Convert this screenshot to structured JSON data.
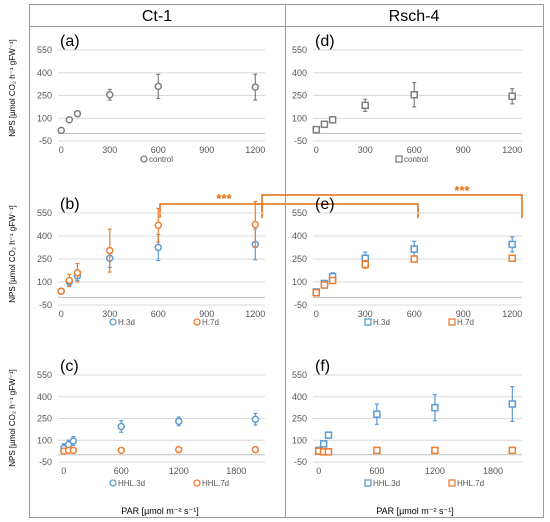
{
  "headers": {
    "left": "Ct-1",
    "right": "Rsch-4"
  },
  "y_axis_label": "NPS [µmol CO₂ h⁻¹ gFW⁻¹]",
  "x_axis_label": "PAR [µmol m⁻² s⁻¹]",
  "significance": "***",
  "colors": {
    "control": "#7f7f7f",
    "blue": "#5b9bd5",
    "orange": "#ed7d31",
    "grid": "#d9d9d9",
    "sig": "#e46c0a"
  },
  "chart_data": [
    {
      "type": "scatter",
      "panel": "(a)",
      "xlabel": "",
      "ylabel": "NPS [µmol CO₂ h⁻¹ gFW⁻¹]",
      "xlim": [
        -20,
        1260
      ],
      "ylim": [
        -50,
        550
      ],
      "xticks": [
        0,
        300,
        600,
        900,
        1200
      ],
      "yticks": [
        -50,
        100,
        250,
        400,
        550
      ],
      "series": [
        {
          "name": "control",
          "marker": "circle",
          "color": "#7f7f7f",
          "x": [
            0,
            50,
            100,
            300,
            600,
            1200
          ],
          "y": [
            20,
            90,
            130,
            255,
            310,
            305
          ],
          "err": [
            15,
            15,
            15,
            35,
            80,
            85
          ]
        }
      ]
    },
    {
      "type": "scatter",
      "panel": "(d)",
      "xlabel": "",
      "ylabel": "",
      "xlim": [
        -20,
        1260
      ],
      "ylim": [
        -50,
        550
      ],
      "xticks": [
        0,
        300,
        600,
        900,
        1200
      ],
      "yticks": [
        -50,
        100,
        250,
        400,
        550
      ],
      "series": [
        {
          "name": "control",
          "marker": "square",
          "color": "#7f7f7f",
          "x": [
            0,
            50,
            100,
            300,
            600,
            1200
          ],
          "y": [
            25,
            60,
            90,
            185,
            255,
            245
          ],
          "err": [
            20,
            20,
            20,
            40,
            80,
            50
          ]
        }
      ]
    },
    {
      "type": "scatter",
      "panel": "(b)",
      "xlabel": "",
      "ylabel": "NPS [µmol CO₂ h⁻¹ gFW⁻¹]",
      "xlim": [
        -20,
        1260
      ],
      "ylim": [
        -50,
        550
      ],
      "xticks": [
        0,
        300,
        600,
        900,
        1200
      ],
      "yticks": [
        -50,
        100,
        250,
        400,
        550
      ],
      "series": [
        {
          "name": "H.3d",
          "marker": "circle",
          "color": "#5b9bd5",
          "x": [
            0,
            50,
            100,
            300,
            600,
            1200
          ],
          "y": [
            40,
            100,
            140,
            255,
            325,
            345
          ],
          "err": [
            15,
            25,
            30,
            60,
            85,
            100
          ]
        },
        {
          "name": "H.7d",
          "marker": "circle",
          "color": "#ed7d31",
          "x": [
            0,
            50,
            100,
            300,
            600,
            1200
          ],
          "y": [
            40,
            110,
            160,
            305,
            470,
            475
          ],
          "err": [
            15,
            40,
            60,
            140,
            110,
            150
          ]
        }
      ]
    },
    {
      "type": "scatter",
      "panel": "(e)",
      "xlabel": "",
      "ylabel": "",
      "xlim": [
        -20,
        1260
      ],
      "ylim": [
        -50,
        550
      ],
      "xticks": [
        0,
        300,
        600,
        900,
        1200
      ],
      "yticks": [
        -50,
        100,
        250,
        400,
        550
      ],
      "series": [
        {
          "name": "H.3d",
          "marker": "square",
          "color": "#5b9bd5",
          "x": [
            0,
            50,
            100,
            300,
            600,
            1200
          ],
          "y": [
            35,
            90,
            135,
            255,
            315,
            345
          ],
          "err": [
            15,
            20,
            25,
            40,
            50,
            50
          ]
        },
        {
          "name": "H.7d",
          "marker": "square",
          "color": "#ed7d31",
          "x": [
            0,
            50,
            100,
            300,
            600,
            1200
          ],
          "y": [
            30,
            80,
            110,
            215,
            250,
            255
          ],
          "err": [
            10,
            15,
            15,
            25,
            20,
            20
          ]
        }
      ]
    },
    {
      "type": "scatter",
      "panel": "(c)",
      "xlabel": "PAR [µmol m⁻² s⁻¹]",
      "ylabel": "NPS [µmol CO₂ h⁻¹ gFW⁻¹]",
      "xlim": [
        -60,
        2100
      ],
      "ylim": [
        -50,
        550
      ],
      "xticks": [
        0,
        600,
        1200,
        1800
      ],
      "yticks": [
        -50,
        100,
        250,
        400,
        550
      ],
      "series": [
        {
          "name": "HHL.3d",
          "marker": "circle",
          "color": "#5b9bd5",
          "x": [
            0,
            50,
            100,
            600,
            1200,
            2000
          ],
          "y": [
            45,
            70,
            95,
            195,
            230,
            245
          ],
          "err": [
            30,
            30,
            30,
            40,
            30,
            40
          ]
        },
        {
          "name": "HHL.7d",
          "marker": "circle",
          "color": "#ed7d31",
          "x": [
            0,
            50,
            100,
            600,
            1200,
            2000
          ],
          "y": [
            25,
            30,
            30,
            30,
            35,
            35
          ],
          "err": [
            5,
            5,
            5,
            5,
            5,
            5
          ]
        }
      ]
    },
    {
      "type": "scatter",
      "panel": "(f)",
      "xlabel": "PAR [µmol m⁻² s⁻¹]",
      "ylabel": "",
      "xlim": [
        -60,
        2100
      ],
      "ylim": [
        -50,
        550
      ],
      "xticks": [
        0,
        600,
        1200,
        1800
      ],
      "yticks": [
        -50,
        100,
        250,
        400,
        550
      ],
      "series": [
        {
          "name": "HHL.3d",
          "marker": "square",
          "color": "#5b9bd5",
          "x": [
            0,
            50,
            100,
            600,
            1200,
            2000
          ],
          "y": [
            30,
            75,
            135,
            280,
            325,
            350
          ],
          "err": [
            15,
            15,
            20,
            70,
            90,
            120
          ]
        },
        {
          "name": "HHL.7d",
          "marker": "square",
          "color": "#ed7d31",
          "x": [
            0,
            50,
            100,
            600,
            1200,
            2000
          ],
          "y": [
            25,
            20,
            20,
            30,
            30,
            30
          ],
          "err": [
            5,
            5,
            5,
            5,
            5,
            5
          ]
        }
      ]
    }
  ]
}
